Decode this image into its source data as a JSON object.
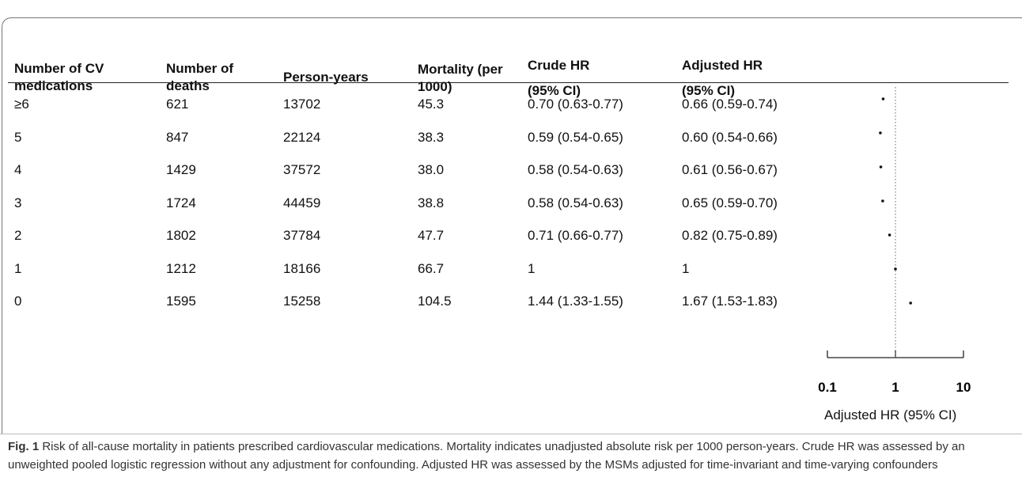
{
  "table": {
    "header": [
      "Number of CV medications",
      "Number of deaths",
      "Person-years",
      "Mortality (per 1000)",
      "Crude HR (95% CI)",
      "Adjusted HR (95% CI)"
    ],
    "rows": [
      [
        "≥6",
        "621",
        "13702",
        "45.3",
        "0.70 (0.63-0.77)",
        "0.66 (0.59-0.74)"
      ],
      [
        "5",
        "847",
        "22124",
        "38.3",
        "0.59 (0.54-0.65)",
        "0.60 (0.54-0.66)"
      ],
      [
        "4",
        "1429",
        "37572",
        "38.0",
        "0.58 (0.54-0.63)",
        "0.61 (0.56-0.67)"
      ],
      [
        "3",
        "1724",
        "44459",
        "38.8",
        "0.58 (0.54-0.63)",
        "0.65 (0.59-0.70)"
      ],
      [
        "2",
        "1802",
        "37784",
        "47.7",
        "0.71 (0.66-0.77)",
        "0.82 (0.75-0.89)"
      ],
      [
        "1",
        "1212",
        "18166",
        "66.7",
        "1",
        "1"
      ],
      [
        "0",
        "1595",
        "15258",
        "104.5",
        "1.44 (1.33-1.55)",
        "1.67 (1.53-1.83)"
      ]
    ]
  },
  "forest": {
    "values": [
      0.66,
      0.6,
      0.61,
      0.65,
      0.82,
      1,
      1.67
    ],
    "xlim": [
      0.1,
      10
    ],
    "xticks": [
      0.1,
      1,
      10
    ],
    "log": true,
    "reference_line": 1,
    "xlabel": "Adjusted HR (95% CI)"
  },
  "caption": {
    "label": "Fig. 1",
    "text": "Risk of all-cause mortality in patients prescribed cardiovascular medications. Mortality indicates unadjusted absolute risk per 1000 person-years. Crude HR was assessed by an unweighted pooled logistic regression without any adjustment for confounding. Adjusted HR was assessed by the MSMs adjusted for time-invariant and time-varying confounders"
  }
}
